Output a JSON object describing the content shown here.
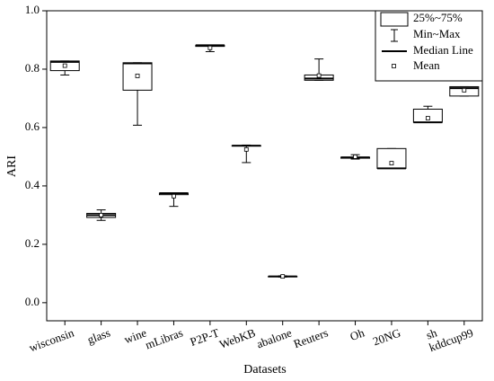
{
  "chart_data": {
    "type": "box",
    "ylabel": "ARI",
    "xlabel": "Datasets",
    "categories": [
      "wisconsin",
      "glass",
      "wine",
      "mLibras",
      "P2P-T",
      "WebKB",
      "abalone",
      "Reuters",
      "Oh",
      "20NG",
      "sh",
      "kddcup99"
    ],
    "boxes": [
      {
        "min": 0.78,
        "q1": 0.795,
        "median": 0.825,
        "q3": 0.828,
        "max": 0.828,
        "mean": 0.812
      },
      {
        "min": 0.282,
        "q1": 0.292,
        "median": 0.3,
        "q3": 0.306,
        "max": 0.318,
        "mean": 0.3
      },
      {
        "min": 0.608,
        "q1": 0.728,
        "median": 0.82,
        "q3": 0.822,
        "max": 0.822,
        "mean": 0.777
      },
      {
        "min": 0.33,
        "q1": 0.37,
        "median": 0.375,
        "q3": 0.375,
        "max": 0.375,
        "mean": 0.365
      },
      {
        "min": 0.86,
        "q1": 0.878,
        "median": 0.882,
        "q3": 0.882,
        "max": 0.882,
        "mean": 0.873
      },
      {
        "min": 0.48,
        "q1": 0.538,
        "median": 0.538,
        "q3": 0.538,
        "max": 0.54,
        "mean": 0.525
      },
      {
        "min": 0.088,
        "q1": 0.09,
        "median": 0.09,
        "q3": 0.09,
        "max": 0.092,
        "mean": 0.09
      },
      {
        "min": 0.762,
        "q1": 0.762,
        "median": 0.768,
        "q3": 0.78,
        "max": 0.835,
        "mean": 0.778
      },
      {
        "min": 0.492,
        "q1": 0.495,
        "median": 0.498,
        "q3": 0.498,
        "max": 0.507,
        "mean": 0.5
      },
      {
        "min": 0.46,
        "q1": 0.46,
        "median": 0.46,
        "q3": 0.528,
        "max": 0.528,
        "mean": 0.478
      },
      {
        "min": 0.618,
        "q1": 0.618,
        "median": 0.618,
        "q3": 0.663,
        "max": 0.673,
        "mean": 0.632
      },
      {
        "min": 0.708,
        "q1": 0.708,
        "median": 0.735,
        "q3": 0.74,
        "max": 0.74,
        "mean": 0.728
      }
    ],
    "legend": [
      "25%~75%",
      "Min~Max",
      "Median Line",
      "Mean"
    ],
    "ylim": [
      -0.062,
      1.0
    ],
    "yticks": [
      {
        "value": 0,
        "label": "0.0"
      },
      0.2,
      0.4,
      0.6,
      0.8,
      {
        "value": 1,
        "label": "1.0"
      }
    ],
    "color": "#000000"
  }
}
